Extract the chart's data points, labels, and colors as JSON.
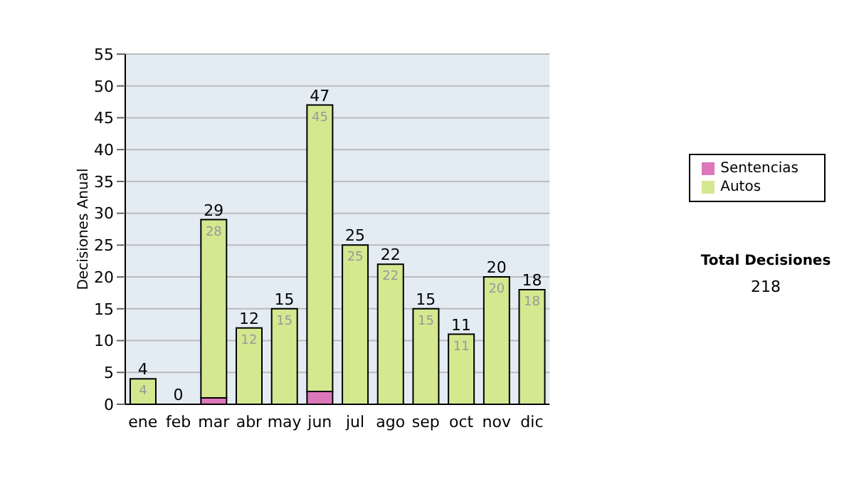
{
  "chart_data": {
    "type": "bar",
    "ylabel": "Decisiones Anual",
    "categories": [
      "ene",
      "feb",
      "mar",
      "abr",
      "may",
      "jun",
      "jul",
      "ago",
      "sep",
      "oct",
      "nov",
      "dic"
    ],
    "stacked": true,
    "series": [
      {
        "name": "Sentencias",
        "color": "#dd77bb",
        "values": [
          0,
          0,
          1,
          0,
          0,
          2,
          0,
          0,
          0,
          0,
          0,
          0
        ]
      },
      {
        "name": "Autos",
        "color": "#d4e890",
        "values": [
          4,
          0,
          28,
          12,
          15,
          45,
          25,
          22,
          15,
          11,
          20,
          18
        ],
        "value_labels": [
          "4",
          null,
          "28",
          "12",
          "15",
          "45",
          "25",
          "22",
          "15",
          "11",
          "20",
          "18"
        ]
      }
    ],
    "totals": [
      "4",
      "0",
      "29",
      "12",
      "15",
      "47",
      "25",
      "22",
      "15",
      "11",
      "20",
      "18"
    ],
    "ylim": [
      0,
      55
    ],
    "yticks": [
      0,
      5,
      10,
      15,
      20,
      25,
      30,
      35,
      40,
      45,
      50,
      55
    ],
    "grid": "y",
    "legend": "right",
    "annotations": [
      "Total Decisiones",
      "218"
    ]
  }
}
